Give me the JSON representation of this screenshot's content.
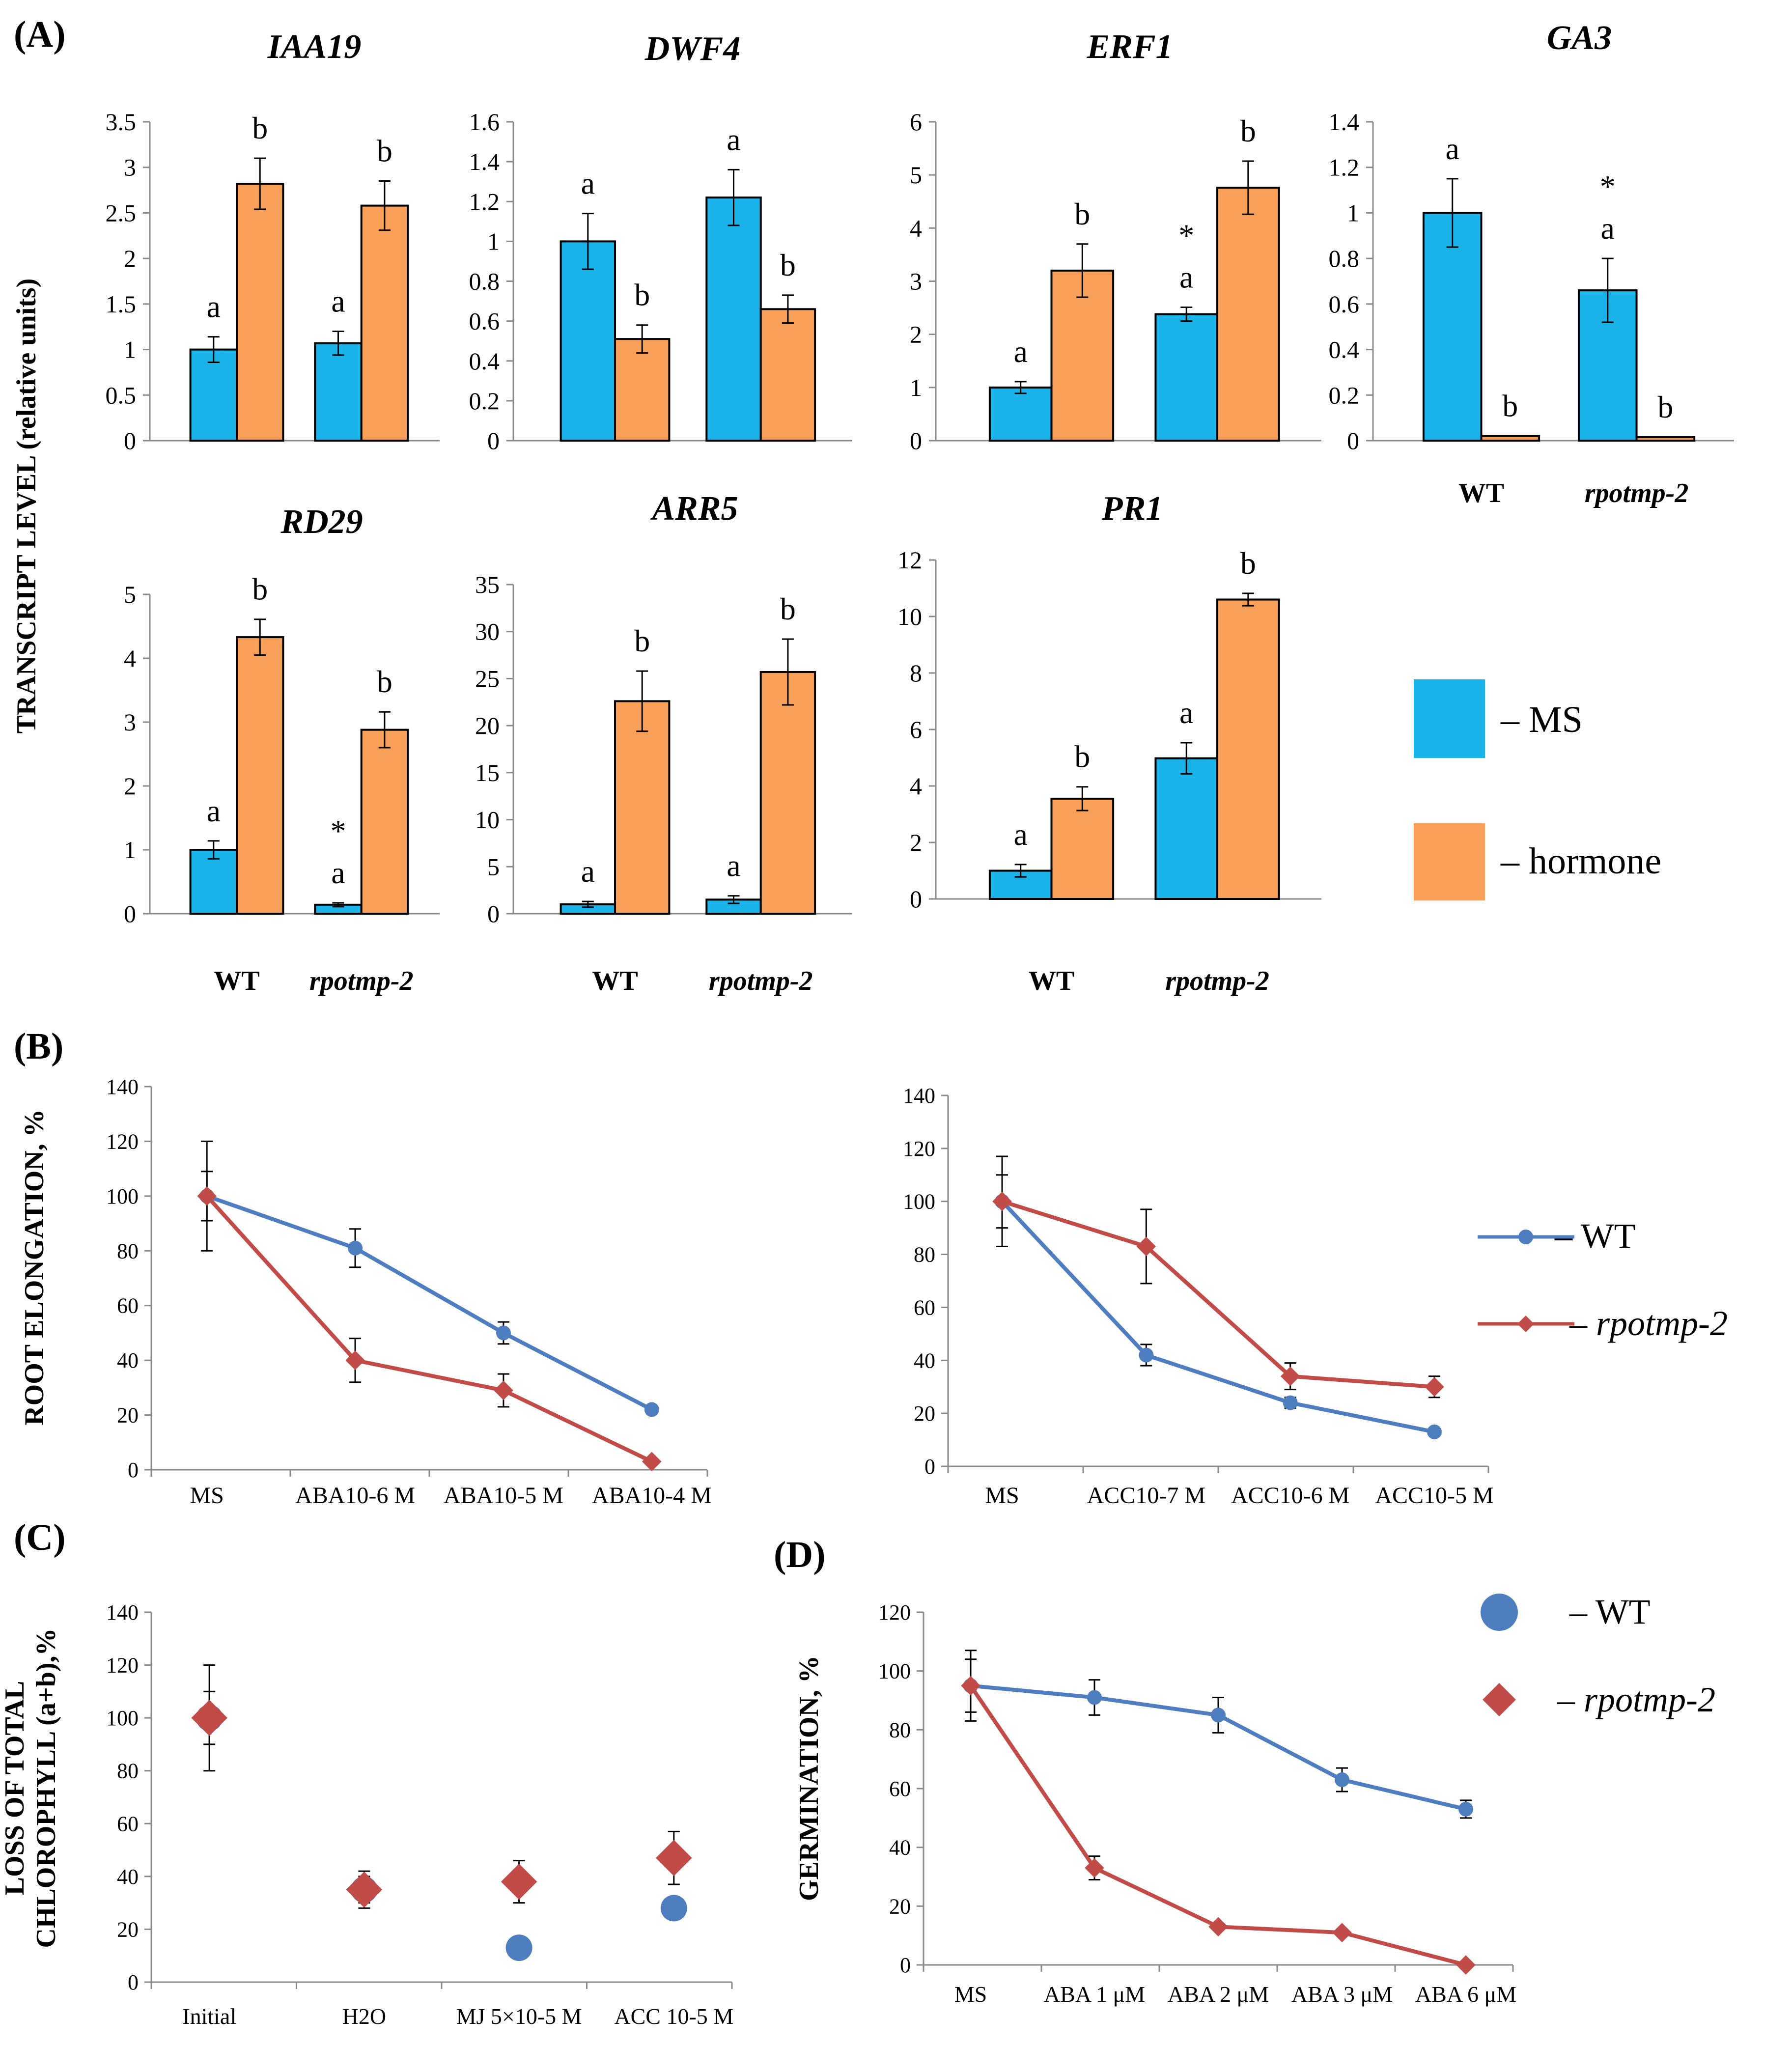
{
  "figure": {
    "panel_labels": {
      "A": "(A)",
      "B": "(B)",
      "C": "(C)",
      "D": "(D)"
    },
    "panelA_ylabel": "TRANSCRIPT LEVEL (relative units)",
    "panelB_ylabel": "ROOT ELONGATION, %",
    "panelC_ylabel_line1": "LOSS OF TOTAL",
    "panelC_ylabel_line2": "CHLOROPHYLL (a+b),%",
    "panelD_ylabel": "GERMINATION, %",
    "genotype_wt": "WT",
    "genotype_mut": "rpotmp-2"
  },
  "legends": {
    "bars": {
      "ms": "– MS",
      "hormone": "– hormone",
      "ms_color": "#1ab3ea",
      "hormone_color": "#f8a059"
    },
    "lines": {
      "wt": "– WT",
      "mut": "– rpotmp-2",
      "wt_color": "#4e7ec0",
      "mut_color": "#c04b47"
    },
    "scatter": {
      "wt": "– WT",
      "mut": "– rpotmp-2"
    }
  },
  "chart_data": [
    {
      "id": "IAA19",
      "type": "bar",
      "title": "IAA19",
      "ylim": [
        0,
        3.5
      ],
      "yticks": [
        "0",
        "0.5",
        "1",
        "1.5",
        "2",
        "2.5",
        "3",
        "3.5"
      ],
      "categories": [
        "WT",
        "rpotmp-2"
      ],
      "show_categories": false,
      "series": [
        {
          "name": "MS",
          "values": [
            1.0,
            1.07
          ],
          "errors": [
            0.14,
            0.13
          ],
          "letters": [
            "a",
            "a"
          ],
          "stars": [
            "",
            ""
          ]
        },
        {
          "name": "hormone",
          "values": [
            2.82,
            2.58
          ],
          "errors": [
            0.28,
            0.27
          ],
          "letters": [
            "b",
            "b"
          ],
          "stars": [
            "",
            ""
          ]
        }
      ]
    },
    {
      "id": "DWF4",
      "type": "bar",
      "title": "DWF4",
      "ylim": [
        0,
        1.6
      ],
      "yticks": [
        "0",
        "0.2",
        "0.4",
        "0.6",
        "0.8",
        "1",
        "1.2",
        "1.4",
        "1.6"
      ],
      "categories": [
        "WT",
        "rpotmp-2"
      ],
      "show_categories": false,
      "series": [
        {
          "name": "MS",
          "values": [
            1.0,
            1.22
          ],
          "errors": [
            0.14,
            0.14
          ],
          "letters": [
            "a",
            "a"
          ],
          "stars": [
            "",
            ""
          ]
        },
        {
          "name": "hormone",
          "values": [
            0.51,
            0.66
          ],
          "errors": [
            0.07,
            0.07
          ],
          "letters": [
            "b",
            "b"
          ],
          "stars": [
            "",
            ""
          ]
        }
      ]
    },
    {
      "id": "ERF1",
      "type": "bar",
      "title": "ERF1",
      "ylim": [
        0,
        6
      ],
      "yticks": [
        "0",
        "1",
        "2",
        "3",
        "4",
        "5",
        "6"
      ],
      "categories": [
        "WT",
        "rpotmp-2"
      ],
      "show_categories": false,
      "series": [
        {
          "name": "MS",
          "values": [
            1.0,
            2.38
          ],
          "errors": [
            0.11,
            0.13
          ],
          "letters": [
            "a",
            "a"
          ],
          "stars": [
            "",
            "*"
          ]
        },
        {
          "name": "hormone",
          "values": [
            3.2,
            4.76
          ],
          "errors": [
            0.5,
            0.5
          ],
          "letters": [
            "b",
            "b"
          ],
          "stars": [
            "",
            ""
          ]
        }
      ]
    },
    {
      "id": "GA3",
      "type": "bar",
      "title": "GA3",
      "ylim": [
        0,
        1.4
      ],
      "yticks": [
        "0",
        "0.2",
        "0.4",
        "0.6",
        "0.8",
        "1",
        "1.2",
        "1.4"
      ],
      "categories": [
        "WT",
        "rpotmp-2"
      ],
      "show_categories": true,
      "series": [
        {
          "name": "MS",
          "values": [
            1.0,
            0.66
          ],
          "errors": [
            0.15,
            0.14
          ],
          "letters": [
            "a",
            "a"
          ],
          "stars": [
            "",
            "*"
          ]
        },
        {
          "name": "hormone",
          "values": [
            0.02,
            0.015
          ],
          "errors": [
            0.0,
            0.0
          ],
          "letters": [
            "b",
            "b"
          ],
          "stars": [
            "",
            ""
          ]
        }
      ]
    },
    {
      "id": "RD29",
      "type": "bar",
      "title": "RD29",
      "ylim": [
        0,
        5
      ],
      "yticks": [
        "0",
        "1",
        "2",
        "3",
        "4",
        "5"
      ],
      "categories": [
        "WT",
        "rpotmp-2"
      ],
      "show_categories": true,
      "series": [
        {
          "name": "MS",
          "values": [
            1.0,
            0.14
          ],
          "errors": [
            0.14,
            0.03
          ],
          "letters": [
            "a",
            "a"
          ],
          "stars": [
            "",
            "*"
          ]
        },
        {
          "name": "hormone",
          "values": [
            4.33,
            2.88
          ],
          "errors": [
            0.28,
            0.28
          ],
          "letters": [
            "b",
            "b"
          ],
          "stars": [
            "",
            ""
          ]
        }
      ]
    },
    {
      "id": "ARR5",
      "type": "bar",
      "title": "ARR5",
      "ylim": [
        0,
        35
      ],
      "yticks": [
        "0",
        "5",
        "10",
        "15",
        "20",
        "25",
        "30",
        "35"
      ],
      "categories": [
        "WT",
        "rpotmp-2"
      ],
      "show_categories": true,
      "series": [
        {
          "name": "MS",
          "values": [
            1.0,
            1.5
          ],
          "errors": [
            0.3,
            0.4
          ],
          "letters": [
            "a",
            "a"
          ],
          "stars": [
            "",
            ""
          ]
        },
        {
          "name": "hormone",
          "values": [
            22.6,
            25.7
          ],
          "errors": [
            3.2,
            3.5
          ],
          "letters": [
            "b",
            "b"
          ],
          "stars": [
            "",
            ""
          ]
        }
      ]
    },
    {
      "id": "PR1",
      "type": "bar",
      "title": "PR1",
      "ylim": [
        0,
        12
      ],
      "yticks": [
        "0",
        "2",
        "4",
        "6",
        "8",
        "10",
        "12"
      ],
      "categories": [
        "WT",
        "rpotmp-2"
      ],
      "show_categories": true,
      "series": [
        {
          "name": "MS",
          "values": [
            1.0,
            4.98
          ],
          "errors": [
            0.22,
            0.55
          ],
          "letters": [
            "a",
            "a"
          ],
          "stars": [
            "",
            ""
          ]
        },
        {
          "name": "hormone",
          "values": [
            3.55,
            10.6
          ],
          "errors": [
            0.42,
            0.22
          ],
          "letters": [
            "b",
            "b"
          ],
          "stars": [
            "",
            ""
          ]
        }
      ]
    },
    {
      "id": "B_ABA",
      "type": "line",
      "ylim": [
        0,
        140
      ],
      "yticks": [
        "0",
        "20",
        "40",
        "60",
        "80",
        "100",
        "120",
        "140"
      ],
      "categories": [
        "MS",
        "ABA10-6 M",
        "ABA10-5 M",
        "ABA10-4 M"
      ],
      "series": [
        {
          "name": "WT",
          "values": [
            100,
            81,
            50,
            22
          ],
          "errors": [
            9,
            7,
            4,
            1
          ]
        },
        {
          "name": "rpotmp-2",
          "values": [
            100,
            40,
            29,
            3
          ],
          "errors": [
            20,
            8,
            6,
            0
          ]
        }
      ]
    },
    {
      "id": "B_ACC",
      "type": "line",
      "ylim": [
        0,
        140
      ],
      "yticks": [
        "0",
        "20",
        "40",
        "60",
        "80",
        "100",
        "120",
        "140"
      ],
      "categories": [
        "MS",
        "ACC10-7 M",
        "ACC10-6 M",
        "ACC10-5 M"
      ],
      "series": [
        {
          "name": "WT",
          "values": [
            100,
            42,
            24,
            13
          ],
          "errors": [
            10,
            4,
            2,
            0
          ]
        },
        {
          "name": "rpotmp-2",
          "values": [
            100,
            83,
            34,
            30
          ],
          "errors": [
            17,
            14,
            5,
            4
          ]
        }
      ]
    },
    {
      "id": "C",
      "type": "scatter",
      "ylim": [
        0,
        140
      ],
      "yticks": [
        "0",
        "20",
        "40",
        "60",
        "80",
        "100",
        "120",
        "140"
      ],
      "categories": [
        "Initial",
        "H2O",
        "MJ 5×10-5 M",
        "ACC 10-5 M"
      ],
      "series": [
        {
          "name": "WT",
          "values": [
            100,
            35,
            13,
            28
          ],
          "errors": [
            20,
            7,
            0,
            0
          ]
        },
        {
          "name": "rpotmp-2",
          "values": [
            100,
            35,
            38,
            47
          ],
          "errors": [
            10,
            5,
            8,
            10
          ]
        }
      ]
    },
    {
      "id": "D",
      "type": "line",
      "ylim": [
        0,
        120
      ],
      "yticks": [
        "0",
        "20",
        "40",
        "60",
        "80",
        "100",
        "120"
      ],
      "categories": [
        "MS",
        "ABA 1 μM",
        "ABA 2 μM",
        "ABA 3 μM",
        "ABA 6 μM"
      ],
      "series": [
        {
          "name": "WT",
          "values": [
            95,
            91,
            85,
            63,
            53
          ],
          "errors": [
            12,
            6,
            6,
            4,
            3
          ]
        },
        {
          "name": "rpotmp-2",
          "values": [
            95,
            33,
            13,
            11,
            0
          ],
          "errors": [
            9,
            4,
            1,
            0,
            0
          ]
        }
      ]
    }
  ]
}
